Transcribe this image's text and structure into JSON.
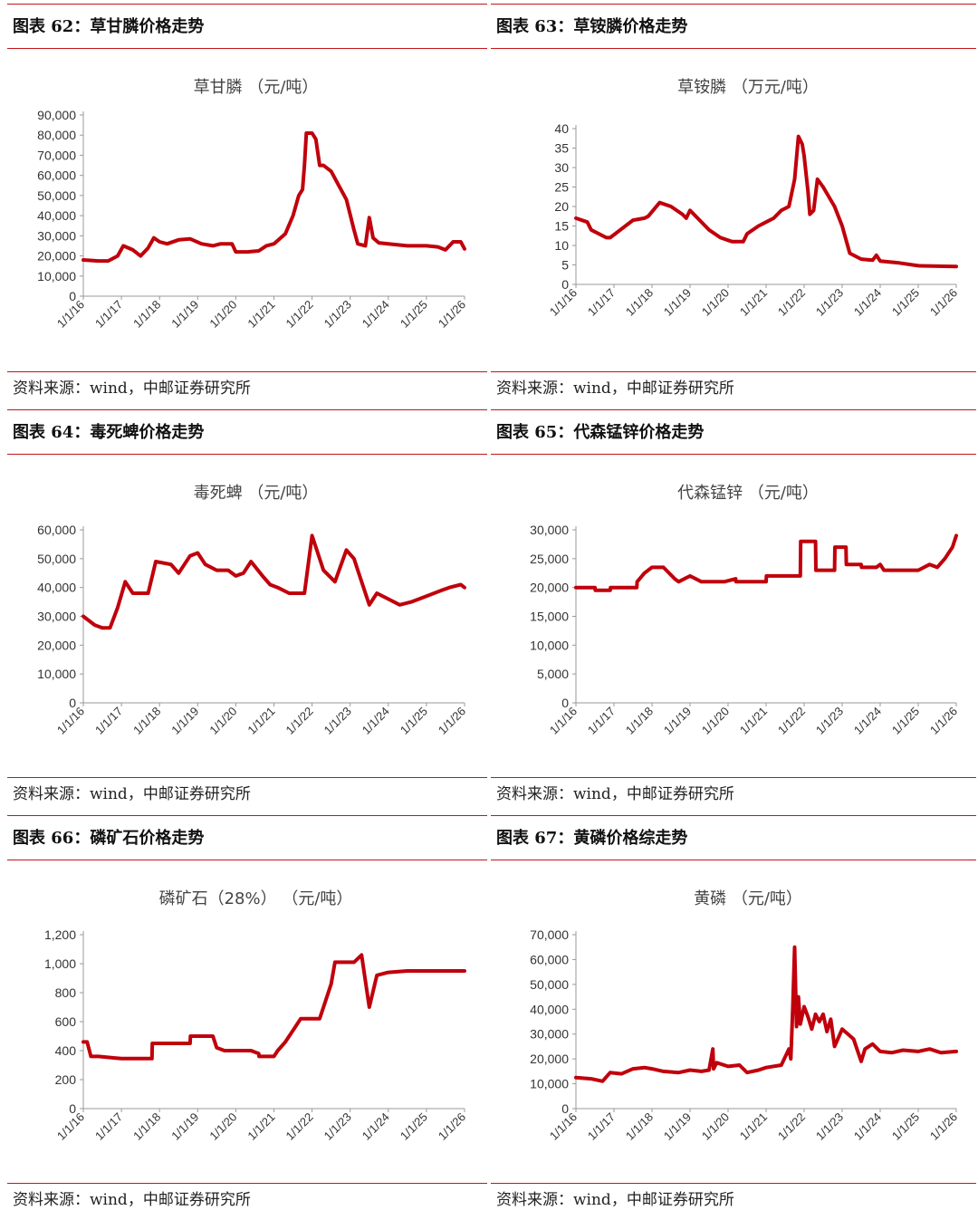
{
  "source_text": "资料来源：wind，中邮证券研究所",
  "panels": [
    {
      "caption": "图表 62：草甘膦价格走势"
    },
    {
      "caption": "图表 63：草铵膦价格走势"
    },
    {
      "caption": "图表 64：毒死蜱价格走势"
    },
    {
      "caption": "图表 65：代森锰锌价格走势"
    },
    {
      "caption": "图表 66：磷矿石价格走势"
    },
    {
      "caption": "图表 67：黄磷价格综走势"
    }
  ],
  "colors": {
    "line": "#c0000b",
    "rule": "#c0161a",
    "axis": "#999999"
  },
  "chart_data": [
    {
      "type": "line",
      "title": "草甘膦 （元/吨）",
      "ylim": [
        0,
        90000
      ],
      "yticks": [
        0,
        10000,
        20000,
        30000,
        40000,
        50000,
        60000,
        70000,
        80000,
        90000
      ],
      "ytick_labels": [
        "0",
        "10,000",
        "20,000",
        "30,000",
        "40,000",
        "50,000",
        "60,000",
        "70,000",
        "80,000",
        "90,000"
      ],
      "xlim": [
        2016.0,
        2026.0
      ],
      "xticks": [
        2016,
        2017,
        2018,
        2019,
        2020,
        2021,
        2022,
        2023,
        2024,
        2025,
        2026
      ],
      "xtick_labels": [
        "1/1/16",
        "1/1/17",
        "1/1/18",
        "1/1/19",
        "1/1/20",
        "1/1/21",
        "1/1/22",
        "1/1/23",
        "1/1/24",
        "1/1/25",
        "1/1/26"
      ],
      "series": [
        {
          "x": [
            2016.0,
            2016.4,
            2016.65,
            2016.9,
            2017.05,
            2017.3,
            2017.5,
            2017.7,
            2017.85,
            2018.0,
            2018.2,
            2018.5,
            2018.8,
            2019.1,
            2019.4,
            2019.6,
            2019.9,
            2020.0,
            2020.3,
            2020.6,
            2020.8,
            2021.0,
            2021.3,
            2021.5,
            2021.65,
            2021.75,
            2021.8,
            2021.85,
            2022.0,
            2022.1,
            2022.2,
            2022.3,
            2022.5,
            2022.7,
            2022.9,
            2023.1,
            2023.2,
            2023.4,
            2023.5,
            2023.6,
            2023.75,
            2024.0,
            2024.5,
            2025.0,
            2025.3,
            2025.5,
            2025.7,
            2025.9,
            2026.0
          ],
          "values": [
            18000,
            17500,
            17500,
            20000,
            25000,
            23000,
            20000,
            24000,
            29000,
            27000,
            26000,
            28000,
            28500,
            26000,
            25000,
            26000,
            26000,
            22000,
            22000,
            22500,
            25000,
            26000,
            31000,
            40000,
            50000,
            53000,
            65000,
            81000,
            81000,
            78000,
            65000,
            65000,
            62000,
            55000,
            48000,
            33000,
            26000,
            25000,
            39000,
            29000,
            26500,
            26000,
            25000,
            25000,
            24500,
            23000,
            27000,
            27000,
            23500
          ]
        }
      ]
    },
    {
      "type": "line",
      "title": "草铵膦 （万元/吨）",
      "ylim": [
        0,
        40
      ],
      "yticks": [
        0,
        5,
        10,
        15,
        20,
        25,
        30,
        35,
        40
      ],
      "ytick_labels": [
        "0",
        "5",
        "10",
        "15",
        "20",
        "25",
        "30",
        "35",
        "40"
      ],
      "xlim": [
        2016.0,
        2026.0
      ],
      "xticks": [
        2016,
        2017,
        2018,
        2019,
        2020,
        2021,
        2022,
        2023,
        2024,
        2025,
        2026
      ],
      "xtick_labels": [
        "1/1/16",
        "1/1/17",
        "1/1/18",
        "1/1/19",
        "1/1/20",
        "1/1/21",
        "1/1/22",
        "1/1/23",
        "1/1/24",
        "1/1/25",
        "1/1/26"
      ],
      "series": [
        {
          "x": [
            2016.0,
            2016.3,
            2016.4,
            2016.8,
            2016.9,
            2017.5,
            2017.8,
            2017.9,
            2018.2,
            2018.5,
            2018.8,
            2018.9,
            2019.0,
            2019.2,
            2019.5,
            2019.8,
            2020.1,
            2020.4,
            2020.5,
            2020.8,
            2021.0,
            2021.2,
            2021.4,
            2021.6,
            2021.75,
            2021.85,
            2021.95,
            2022.0,
            2022.1,
            2022.15,
            2022.25,
            2022.35,
            2022.5,
            2022.8,
            2023.0,
            2023.2,
            2023.5,
            2023.8,
            2023.9,
            2024.0,
            2024.5,
            2025.0,
            2026.0
          ],
          "values": [
            17,
            16,
            14,
            12,
            12,
            16.5,
            17,
            17.5,
            21,
            20,
            18,
            17,
            19,
            17,
            14,
            12,
            11,
            11,
            13,
            15,
            16,
            17,
            19,
            20,
            27,
            38,
            36,
            33,
            24,
            18,
            19,
            27,
            25,
            20,
            15,
            8,
            6.5,
            6.2,
            7.5,
            6,
            5.5,
            4.8,
            4.6
          ]
        }
      ]
    },
    {
      "type": "line",
      "title": "毒死蜱 （元/吨）",
      "ylim": [
        0,
        60000
      ],
      "yticks": [
        0,
        10000,
        20000,
        30000,
        40000,
        50000,
        60000
      ],
      "ytick_labels": [
        "0",
        "10,000",
        "20,000",
        "30,000",
        "40,000",
        "50,000",
        "60,000"
      ],
      "xlim": [
        2016.0,
        2026.0
      ],
      "xticks": [
        2016,
        2017,
        2018,
        2019,
        2020,
        2021,
        2022,
        2023,
        2024,
        2025,
        2026
      ],
      "xtick_labels": [
        "1/1/16",
        "1/1/17",
        "1/1/18",
        "1/1/19",
        "1/1/20",
        "1/1/21",
        "1/1/22",
        "1/1/23",
        "1/1/24",
        "1/1/25",
        "1/1/26"
      ],
      "series": [
        {
          "x": [
            2016.0,
            2016.3,
            2016.5,
            2016.7,
            2016.9,
            2017.1,
            2017.3,
            2017.7,
            2017.9,
            2018.3,
            2018.5,
            2018.8,
            2019.0,
            2019.2,
            2019.5,
            2019.8,
            2020.0,
            2020.2,
            2020.4,
            2020.7,
            2020.9,
            2021.1,
            2021.4,
            2021.8,
            2022.0,
            2022.3,
            2022.6,
            2022.9,
            2023.1,
            2023.3,
            2023.5,
            2023.7,
            2024.0,
            2024.3,
            2024.6,
            2025.0,
            2025.4,
            2025.6,
            2025.9,
            2026.0
          ],
          "values": [
            30000,
            27000,
            26000,
            26000,
            33000,
            42000,
            38000,
            38000,
            49000,
            48000,
            45000,
            51000,
            52000,
            48000,
            46000,
            46000,
            44000,
            45000,
            49000,
            44000,
            41000,
            40000,
            38000,
            38000,
            58000,
            46000,
            42000,
            53000,
            50000,
            42000,
            34000,
            38000,
            36000,
            34000,
            35000,
            37000,
            39000,
            40000,
            41000,
            40000
          ]
        }
      ]
    },
    {
      "type": "line",
      "title": "代森锰锌 （元/吨）",
      "ylim": [
        0,
        30000
      ],
      "yticks": [
        0,
        5000,
        10000,
        15000,
        20000,
        25000,
        30000
      ],
      "ytick_labels": [
        "0",
        "5,000",
        "10,000",
        "15,000",
        "20,000",
        "25,000",
        "30,000"
      ],
      "xlim": [
        2016.0,
        2026.0
      ],
      "xticks": [
        2016,
        2017,
        2018,
        2019,
        2020,
        2021,
        2022,
        2023,
        2024,
        2025,
        2026
      ],
      "xtick_labels": [
        "1/1/16",
        "1/1/17",
        "1/1/18",
        "1/1/19",
        "1/1/20",
        "1/1/21",
        "1/1/22",
        "1/1/23",
        "1/1/24",
        "1/1/25",
        "1/1/26"
      ],
      "series": [
        {
          "x": [
            2016.0,
            2016.5,
            2016.51,
            2016.9,
            2016.91,
            2017.6,
            2017.61,
            2017.8,
            2018.0,
            2018.3,
            2018.6,
            2018.7,
            2019.0,
            2019.3,
            2019.6,
            2019.9,
            2020.2,
            2020.21,
            2021.0,
            2021.01,
            2021.9,
            2021.91,
            2022.3,
            2022.31,
            2022.8,
            2022.81,
            2023.1,
            2023.11,
            2023.5,
            2023.51,
            2023.9,
            2024.0,
            2024.1,
            2025.0,
            2025.3,
            2025.5,
            2025.7,
            2025.9,
            2026.0
          ],
          "values": [
            20000,
            20000,
            19500,
            19500,
            20000,
            20000,
            21000,
            22500,
            23500,
            23500,
            21500,
            21000,
            22000,
            21000,
            21000,
            21000,
            21500,
            21000,
            21000,
            22000,
            22000,
            28000,
            28000,
            23000,
            23000,
            27000,
            27000,
            24000,
            24000,
            23500,
            23500,
            24000,
            23000,
            23000,
            24000,
            23500,
            25000,
            27000,
            29000
          ]
        }
      ]
    },
    {
      "type": "line",
      "title": "磷矿石（28%） （元/吨）",
      "ylim": [
        0,
        1200
      ],
      "yticks": [
        0,
        200,
        400,
        600,
        800,
        1000,
        1200
      ],
      "ytick_labels": [
        "0",
        "200",
        "400",
        "600",
        "800",
        "1,000",
        "1,200"
      ],
      "xlim": [
        2016.0,
        2026.0
      ],
      "xticks": [
        2016,
        2017,
        2018,
        2019,
        2020,
        2021,
        2022,
        2023,
        2024,
        2025,
        2026
      ],
      "xtick_labels": [
        "1/1/16",
        "1/1/17",
        "1/1/18",
        "1/1/19",
        "1/1/20",
        "1/1/21",
        "1/1/22",
        "1/1/23",
        "1/1/24",
        "1/1/25",
        "1/1/26"
      ],
      "series": [
        {
          "x": [
            2016.0,
            2016.1,
            2016.2,
            2016.4,
            2017.0,
            2017.8,
            2017.81,
            2018.8,
            2018.81,
            2019.4,
            2019.5,
            2019.7,
            2020.4,
            2020.6,
            2020.61,
            2021.0,
            2021.1,
            2021.3,
            2021.5,
            2021.7,
            2022.0,
            2022.2,
            2022.5,
            2022.6,
            2023.1,
            2023.3,
            2023.5,
            2023.7,
            2024.0,
            2024.5,
            2026.0
          ],
          "values": [
            460,
            460,
            360,
            360,
            345,
            345,
            450,
            450,
            500,
            500,
            420,
            400,
            400,
            380,
            360,
            360,
            400,
            460,
            540,
            620,
            620,
            620,
            860,
            1010,
            1010,
            1060,
            700,
            920,
            940,
            950,
            950
          ]
        }
      ]
    },
    {
      "type": "line",
      "title": "黄磷 （元/吨）",
      "ylim": [
        0,
        70000
      ],
      "yticks": [
        0,
        10000,
        20000,
        30000,
        40000,
        50000,
        60000,
        70000
      ],
      "ytick_labels": [
        "0",
        "10,000",
        "20,000",
        "30,000",
        "40,000",
        "50,000",
        "60,000",
        "70,000"
      ],
      "xlim": [
        2016.0,
        2026.0
      ],
      "xticks": [
        2016,
        2017,
        2018,
        2019,
        2020,
        2021,
        2022,
        2023,
        2024,
        2025,
        2026
      ],
      "xtick_labels": [
        "1/1/16",
        "1/1/17",
        "1/1/18",
        "1/1/19",
        "1/1/20",
        "1/1/21",
        "1/1/22",
        "1/1/23",
        "1/1/24",
        "1/1/25",
        "1/1/26"
      ],
      "series": [
        {
          "x": [
            2016.0,
            2016.4,
            2016.7,
            2016.9,
            2017.2,
            2017.5,
            2017.8,
            2018.0,
            2018.3,
            2018.7,
            2019.0,
            2019.3,
            2019.5,
            2019.6,
            2019.62,
            2019.7,
            2020.0,
            2020.3,
            2020.5,
            2020.8,
            2021.0,
            2021.4,
            2021.6,
            2021.65,
            2021.7,
            2021.75,
            2021.8,
            2021.85,
            2021.9,
            2022.0,
            2022.1,
            2022.2,
            2022.3,
            2022.4,
            2022.5,
            2022.6,
            2022.7,
            2022.8,
            2023.0,
            2023.3,
            2023.5,
            2023.6,
            2023.8,
            2024.0,
            2024.3,
            2024.6,
            2025.0,
            2025.3,
            2025.6,
            2026.0
          ],
          "values": [
            12500,
            12000,
            11000,
            14500,
            14000,
            16000,
            16500,
            16000,
            15000,
            14500,
            15500,
            15000,
            15500,
            24000,
            16000,
            18500,
            17000,
            17500,
            14500,
            15500,
            16500,
            17500,
            24000,
            20000,
            40000,
            65000,
            33000,
            45000,
            34000,
            41000,
            37000,
            32000,
            38000,
            35000,
            38000,
            31000,
            36000,
            25000,
            32000,
            28000,
            19000,
            24000,
            26000,
            23000,
            22500,
            23500,
            23000,
            24000,
            22500,
            23000
          ]
        }
      ]
    }
  ]
}
